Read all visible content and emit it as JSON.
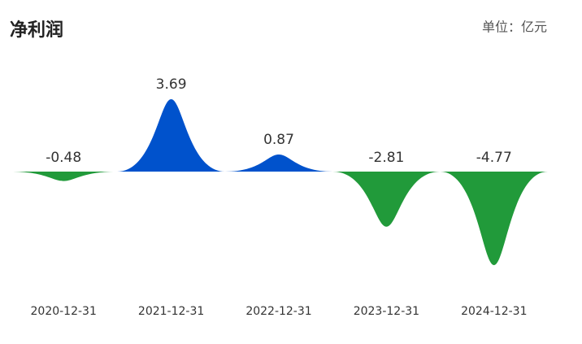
{
  "chart_data": {
    "type": "bar",
    "title": "净利润",
    "unit": "单位：亿元",
    "categories": [
      "2020-12-31",
      "2021-12-31",
      "2022-12-31",
      "2023-12-31",
      "2024-12-31"
    ],
    "values": [
      -0.48,
      3.69,
      0.87,
      -2.81,
      -4.77
    ],
    "positive_color": "#0052cc",
    "negative_color": "#219a3a"
  }
}
